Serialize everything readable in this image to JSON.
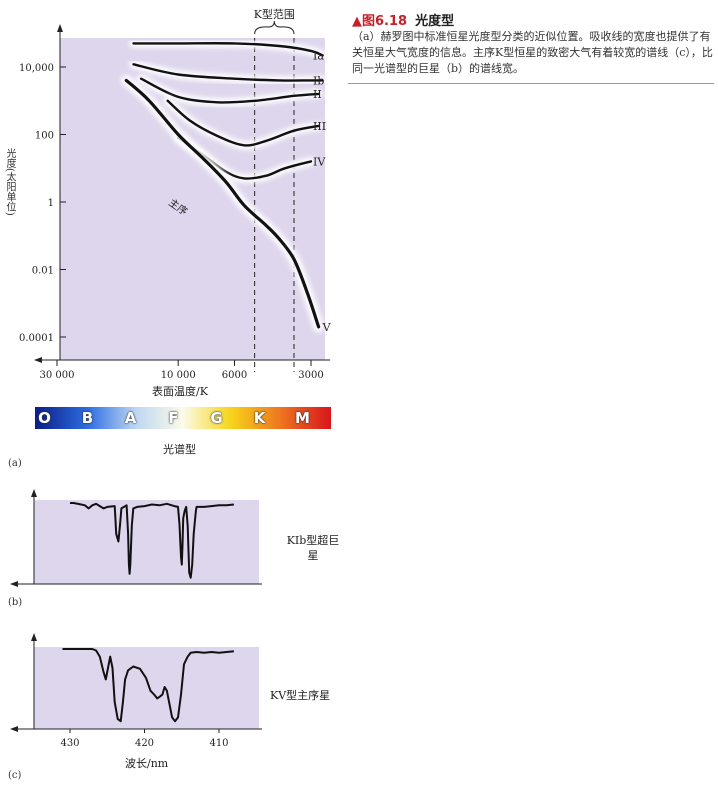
{
  "caption": {
    "figure_number": "▲图6.18",
    "title": "光度型",
    "text": "（a）赫罗图中标准恒星光度型分类的近似位置。吸收线的宽度也提供了有关恒星大气宽度的信息。主序K型恒星的致密大气有着较宽的谱线（c），比同一光谱型的巨星（b）的谱线宽。"
  },
  "chart_data": [
    {
      "type": "line",
      "panel_label": "(a)",
      "xlabel": "表面温度/K",
      "ylabel": "光度(太阳单位)",
      "x_scale": "log",
      "x_reversed": true,
      "y_scale": "log",
      "xlim": [
        40000,
        2500
      ],
      "ylim": [
        3e-05,
        200000
      ],
      "x_ticks": [
        30000,
        10000,
        6000,
        3000
      ],
      "x_tick_labels": [
        "30 000",
        "10 000",
        "6000",
        "3000"
      ],
      "y_ticks": [
        10000,
        100,
        1,
        0.01,
        0.0001
      ],
      "y_tick_labels": [
        "10,000",
        "100",
        "1",
        "0.01",
        "0.0001"
      ],
      "band_label": "K型范围",
      "band_x": [
        5000,
        3500
      ],
      "main_sequence_label": "主序",
      "spectral_types": {
        "label": "光谱型",
        "classes": [
          "O",
          "B",
          "A",
          "F",
          "G",
          "K",
          "M"
        ]
      },
      "series": [
        {
          "name": "Ia",
          "points": [
            [
              15000,
              50000
            ],
            [
              10000,
              50000
            ],
            [
              6000,
              50000
            ],
            [
              4000,
              42000
            ],
            [
              3000,
              30000
            ],
            [
              2700,
              22000
            ]
          ]
        },
        {
          "name": "Ib",
          "points": [
            [
              15000,
              12000
            ],
            [
              10000,
              6000
            ],
            [
              6000,
              4500
            ],
            [
              4000,
              4000
            ],
            [
              3000,
              4000
            ],
            [
              2700,
              4000
            ]
          ]
        },
        {
          "name": "II",
          "points": [
            [
              14000,
              4500
            ],
            [
              10000,
              1300
            ],
            [
              7000,
              900
            ],
            [
              5000,
              1000
            ],
            [
              3500,
              1400
            ],
            [
              2800,
              1600
            ]
          ]
        },
        {
          "name": "III",
          "points": [
            [
              11000,
              1000
            ],
            [
              9000,
              260
            ],
            [
              7000,
              90
            ],
            [
              5500,
              48
            ],
            [
              4500,
              65
            ],
            [
              3500,
              130
            ],
            [
              2800,
              180
            ]
          ]
        },
        {
          "name": "IV",
          "points": [
            [
              10000,
              80
            ],
            [
              8000,
              25
            ],
            [
              6500,
              8
            ],
            [
              5500,
              5
            ],
            [
              4500,
              6
            ],
            [
              3800,
              10
            ],
            [
              3000,
              16
            ]
          ]
        },
        {
          "name": "V",
          "points": [
            [
              16000,
              4000
            ],
            [
              13000,
              1000
            ],
            [
              10000,
              100
            ],
            [
              8000,
              20
            ],
            [
              6500,
              4
            ],
            [
              5500,
              0.8
            ],
            [
              4500,
              0.2
            ],
            [
              4000,
              0.08
            ],
            [
              3500,
              0.02
            ],
            [
              3100,
              0.002
            ],
            [
              2800,
              0.0002
            ]
          ]
        }
      ]
    },
    {
      "type": "line",
      "panel_label": "(b)",
      "series_label": "KIb型超巨星",
      "x_reversed": true,
      "xlim": [
        433,
        407
      ],
      "ylim": [
        0,
        1
      ],
      "series": [
        {
          "points": [
            [
              430,
              1.0
            ],
            [
              429.5,
              1.0
            ],
            [
              428.5,
              0.98
            ],
            [
              428,
              0.97
            ],
            [
              427.5,
              0.93
            ],
            [
              427,
              0.97
            ],
            [
              426.5,
              0.99
            ],
            [
              426,
              0.96
            ],
            [
              425.5,
              0.93
            ],
            [
              425,
              0.95
            ],
            [
              424,
              0.96
            ],
            [
              423.9,
              0.8
            ],
            [
              423.8,
              0.6
            ],
            [
              423.5,
              0.5
            ],
            [
              423.3,
              0.7
            ],
            [
              423.1,
              0.93
            ],
            [
              422.4,
              0.97
            ],
            [
              422.2,
              0.6
            ],
            [
              422.1,
              0.2
            ],
            [
              422.0,
              0.08
            ],
            [
              421.9,
              0.2
            ],
            [
              421.7,
              0.7
            ],
            [
              421.5,
              0.93
            ],
            [
              421,
              0.95
            ],
            [
              420,
              0.96
            ],
            [
              419,
              0.98
            ],
            [
              418,
              0.97
            ],
            [
              417,
              0.99
            ],
            [
              416,
              0.96
            ],
            [
              415.5,
              0.95
            ],
            [
              415.3,
              0.72
            ],
            [
              415.1,
              0.3
            ],
            [
              415.0,
              0.2
            ],
            [
              414.9,
              0.45
            ],
            [
              414.8,
              0.8
            ],
            [
              414.6,
              0.9
            ],
            [
              414.4,
              0.95
            ],
            [
              414.2,
              0.7
            ],
            [
              414.0,
              0.1
            ],
            [
              413.8,
              0.03
            ],
            [
              413.6,
              0.2
            ],
            [
              413.4,
              0.6
            ],
            [
              413.1,
              0.9
            ],
            [
              413,
              0.95
            ],
            [
              412,
              0.95
            ],
            [
              411,
              0.96
            ],
            [
              410,
              0.97
            ],
            [
              409,
              0.97
            ],
            [
              408,
              0.98
            ]
          ]
        }
      ]
    },
    {
      "type": "line",
      "panel_label": "(c)",
      "series_label": "KV型主序星",
      "xlabel": "波长/nm",
      "x_reversed": true,
      "xlim": [
        433,
        407
      ],
      "ylim": [
        0,
        1
      ],
      "x_ticks": [
        430,
        420,
        410
      ],
      "x_tick_labels": [
        "430",
        "420",
        "410"
      ],
      "series": [
        {
          "points": [
            [
              431,
              1.0
            ],
            [
              429,
              1.0
            ],
            [
              427,
              1.0
            ],
            [
              426.5,
              0.98
            ],
            [
              426,
              0.9
            ],
            [
              425.5,
              0.7
            ],
            [
              425.2,
              0.6
            ],
            [
              424.9,
              0.75
            ],
            [
              424.6,
              0.9
            ],
            [
              424.3,
              0.75
            ],
            [
              424,
              0.3
            ],
            [
              423.6,
              0.08
            ],
            [
              423.2,
              0.05
            ],
            [
              422.9,
              0.3
            ],
            [
              422.6,
              0.6
            ],
            [
              422.2,
              0.72
            ],
            [
              421.5,
              0.77
            ],
            [
              420.6,
              0.74
            ],
            [
              419.8,
              0.62
            ],
            [
              419.2,
              0.45
            ],
            [
              418.7,
              0.4
            ],
            [
              418.3,
              0.35
            ],
            [
              418,
              0.37
            ],
            [
              417.6,
              0.4
            ],
            [
              417.3,
              0.5
            ],
            [
              417,
              0.45
            ],
            [
              416.7,
              0.3
            ],
            [
              416.3,
              0.1
            ],
            [
              415.9,
              0.05
            ],
            [
              415.5,
              0.1
            ],
            [
              415.1,
              0.4
            ],
            [
              414.7,
              0.8
            ],
            [
              414.2,
              0.9
            ],
            [
              413.8,
              0.95
            ],
            [
              413,
              0.96
            ],
            [
              412,
              0.95
            ],
            [
              411,
              0.96
            ],
            [
              410,
              0.95
            ],
            [
              409,
              0.96
            ],
            [
              408,
              0.97
            ]
          ]
        }
      ]
    }
  ],
  "colors": {
    "plot_bg": "#ded6ec",
    "curve": "#111111",
    "spectral_bar_stops": [
      "#0a1e86",
      "#2f6ee2",
      "#bdd7f2",
      "#fbfbe8",
      "#f7d51c",
      "#ee7b1e",
      "#d9151d"
    ],
    "figure_number": "#c8202a"
  }
}
